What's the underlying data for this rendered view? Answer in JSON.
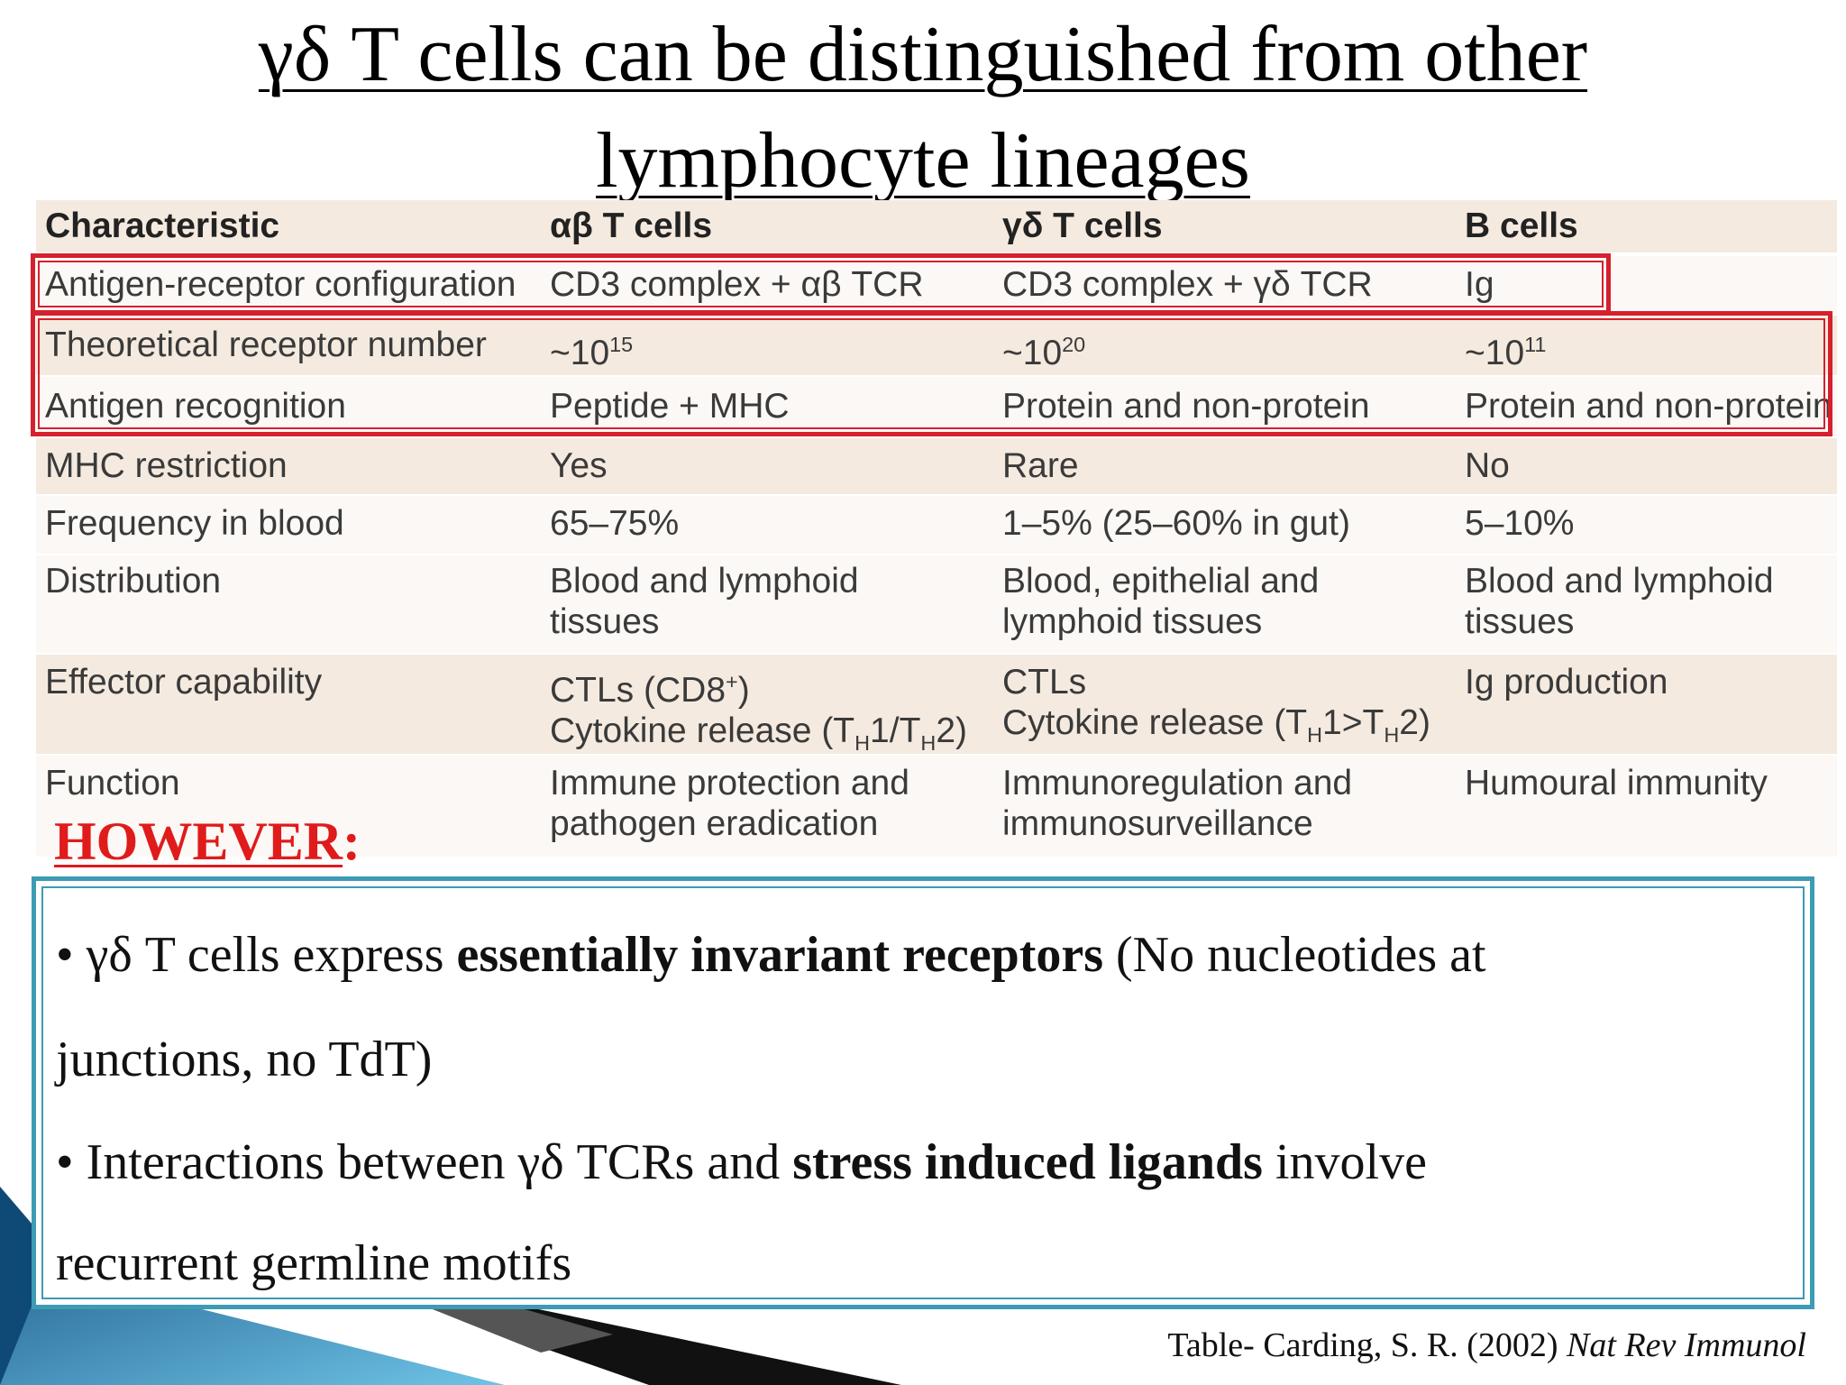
{
  "title": {
    "line1": "γδ T cells can be distinguished from other",
    "line2": "lymphocyte lineages"
  },
  "table": {
    "headers": [
      "Characteristic",
      "αβ T cells",
      "γδ T cells",
      "B cells"
    ],
    "rows": {
      "antigen_receptor": [
        "Antigen-receptor configuration",
        "CD3 complex + αβ TCR",
        "CD3 complex + γδ TCR",
        "Ig"
      ],
      "receptor_number": {
        "label": "Theoretical receptor number",
        "ab_base": "~10",
        "ab_exp": "15",
        "gd_base": "~10",
        "gd_exp": "20",
        "b_base": "~10",
        "b_exp": "11"
      },
      "antigen_recognition": [
        "Antigen recognition",
        "Peptide + MHC",
        "Protein and non-protein",
        "Protein and non-protein"
      ],
      "mhc_restriction": [
        "MHC restriction",
        "Yes",
        "Rare",
        "No"
      ],
      "frequency": [
        "Frequency in blood",
        "65–75%",
        "1–5% (25–60% in gut)",
        "5–10%"
      ],
      "distribution": {
        "label": "Distribution",
        "ab": [
          "Blood and lymphoid",
          "tissues"
        ],
        "gd": [
          "Blood, epithelial and",
          "lymphoid tissues"
        ],
        "b": [
          "Blood and lymphoid",
          "tissues"
        ]
      },
      "effector": {
        "label": "Effector capability",
        "ab_line1_a": "CTLs (CD8",
        "ab_line1_sup": "+",
        "ab_line1_b": ")",
        "ab_line2": [
          "Cytokine release (T",
          "H",
          "1/T",
          "H",
          "2)"
        ],
        "gd_line1": "CTLs",
        "gd_line2": [
          "Cytokine release (T",
          "H",
          "1>T",
          "H",
          "2)"
        ],
        "b": "Ig production"
      },
      "function": {
        "label": "Function",
        "ab": [
          "Immune protection and",
          "pathogen eradication"
        ],
        "gd": [
          "Immunoregulation and",
          "immunosurveillance"
        ],
        "b": "Humoural immunity"
      }
    }
  },
  "however": {
    "word": "HOWEVER",
    "colon": ":"
  },
  "bullets": {
    "b1": {
      "prefix": "• γδ T cells express ",
      "bold": "essentially invariant receptors",
      "suffix": " (No nucleotides at",
      "line2": "junctions, no TdT)"
    },
    "b2": {
      "prefix": "• Interactions between γδ TCRs and ",
      "bold": "stress induced ligands",
      "suffix": " involve",
      "line2": "recurrent germline motifs"
    }
  },
  "citation": {
    "plain": "Table- Carding, S. R. (2002) ",
    "italic": "Nat Rev Immunol"
  },
  "colors": {
    "red_box": "#d5202e",
    "blue_box": "#3d9bb3",
    "however": "#e01b1b",
    "row_shade": "#f4eadf"
  }
}
